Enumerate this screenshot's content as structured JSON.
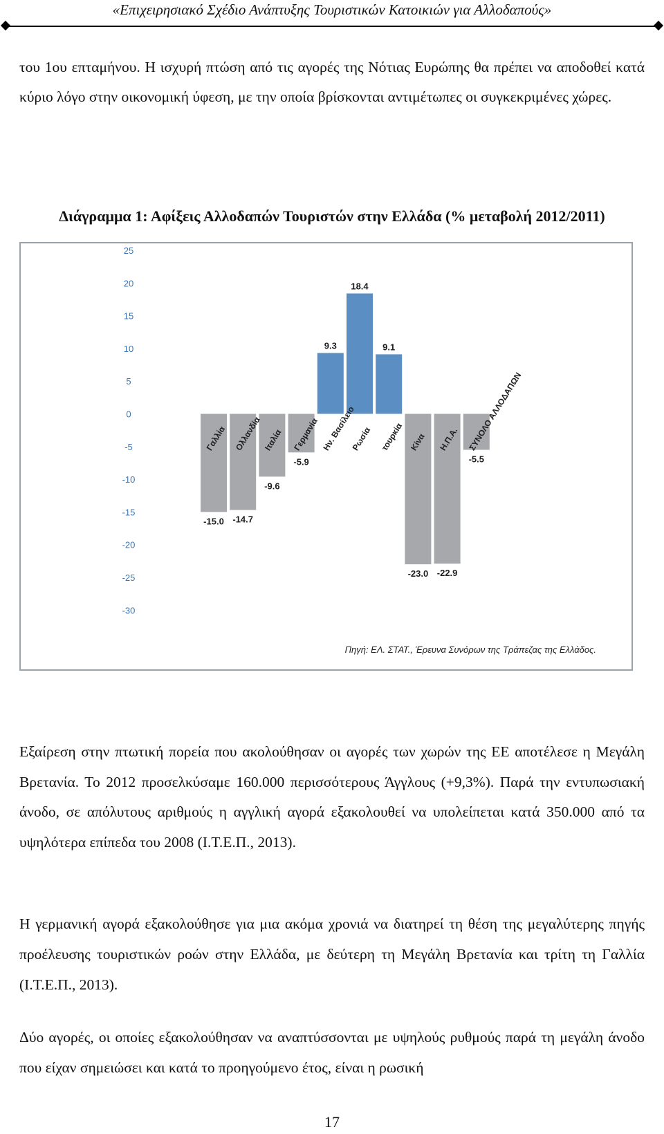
{
  "header": {
    "running_title": "«Επιχειρησιακό Σχέδιο Ανάπτυξης Τουριστικών Κατοικιών για Αλλοδαπούς»"
  },
  "paragraphs": {
    "p1": "του 1ου επταμήνου. Η ισχυρή πτώση από τις αγορές της Νότιας Ευρώπης θα πρέπει να αποδοθεί κατά κύριο λόγο στην οικονομική ύφεση, με την οποία βρίσκονται αντιμέτωπες οι συγκεκριμένες χώρες.",
    "p2": "Εξαίρεση στην πτωτική πορεία που ακολούθησαν οι αγορές των χωρών της ΕΕ αποτέλεσε η Μεγάλη Βρετανία. Το 2012 προσελκύσαμε 160.000 περισσότερους Άγγλους (+9,3%). Παρά την εντυπωσιακή άνοδο, σε απόλυτους αριθμούς η αγγλική αγορά εξακολουθεί να υπολείπεται κατά 350.000 από τα υψηλότερα επίπεδα του 2008 (Ι.Τ.Ε.Π., 2013).",
    "p3": "Η γερμανική αγορά εξακολούθησε για μια ακόμα χρονιά να διατηρεί τη θέση της μεγαλύτερης πηγής προέλευσης τουριστικών ροών στην Ελλάδα, με δεύτερη τη Μεγάλη Βρετανία και τρίτη τη Γαλλία (Ι.Τ.Ε.Π., 2013).",
    "p4": "Δύο αγορές, οι οποίες εξακολούθησαν να αναπτύσσονται με υψηλούς ρυθμούς παρά τη μεγάλη άνοδο που είχαν σημειώσει και κατά το προηγούμενο έτος, είναι η ρωσική"
  },
  "figure": {
    "caption": "Διάγραμμα 1: Αφίξεις Αλλοδαπών Τουριστών στην Ελλάδα (% μεταβολή 2012/2011)"
  },
  "chart_data": {
    "type": "bar",
    "title": "Διάγραμμα 1: Αφίξεις Αλλοδαπών Τουριστών στην Ελλάδα (% μεταβολή 2012/2011)",
    "categories": [
      "Γαλλία",
      "Ολλανδία",
      "Ιταλία",
      "Γερμανία",
      "Ην. Βασίλειο",
      "Ρωσία",
      "Τουρκία",
      "Κίνα",
      "Η.Π.Α.",
      "ΣΥΝΟΛΟ ΑΛΛΟΔΑΠΩΝ"
    ],
    "values": [
      -15.0,
      -14.7,
      -9.6,
      -5.9,
      9.3,
      18.4,
      9.1,
      -23.0,
      -22.9,
      -5.5
    ],
    "value_labels": [
      "-15.0",
      "-14.7",
      "-9.6",
      "-5.9",
      "9.3",
      "18.4",
      "9.1",
      "-23.0",
      "-22.9",
      "-5.5"
    ],
    "category_labels": [
      "Γαλλία",
      "Ολλανδία",
      "Ιταλία",
      "Γερμανία",
      "Ην. Βασίλειο",
      "Ρωσία",
      "τουρκία",
      "Κίνα",
      "Η.Π.Α.",
      "ΣΥΝΟΛΟ ΑΛΛΟΔΑΠΩΝ"
    ],
    "yticks": [
      25,
      20,
      15,
      10,
      5,
      0,
      -5,
      -10,
      -15,
      -20,
      -25,
      -30
    ],
    "ytick_labels": [
      "25",
      "20",
      "15",
      "10",
      "5",
      "0",
      "-5",
      "-10",
      "-15",
      "-20",
      "-25",
      "-30"
    ],
    "ylim": [
      -30,
      25
    ],
    "xlabel": "",
    "ylabel": "",
    "source": "Πηγή: ΕΛ. ΣΤΑΤ., Έρευνα Συνόρων της Τράπεζας της Ελλάδος.",
    "colors": {
      "positive": "#5b8fc4",
      "negative": "#a6a8ab",
      "frame": "#9aa2ad",
      "tick_text": "#3a76b5",
      "label_text": "#1e1e1e"
    }
  },
  "footer": {
    "page_number": "17"
  }
}
